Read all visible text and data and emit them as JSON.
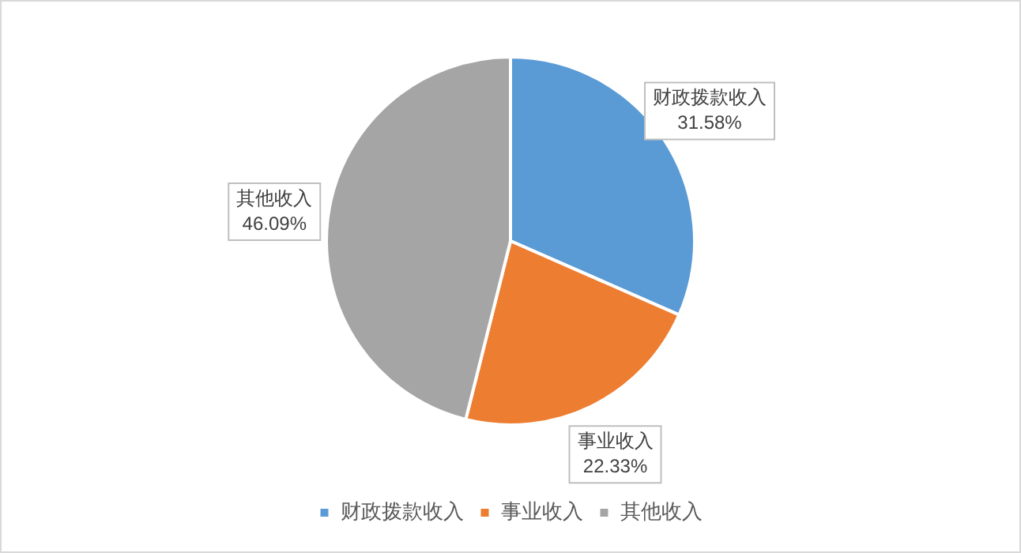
{
  "chart_data": {
    "type": "pie",
    "categories": [
      "财政拨款收入",
      "事业收入",
      "其他收入"
    ],
    "values": [
      31.58,
      22.33,
      46.09
    ],
    "colors": [
      "#5b9bd5",
      "#ed7d31",
      "#a5a5a5"
    ],
    "value_labels": [
      "31.58%",
      "22.33%",
      "46.09%"
    ],
    "legend": "bottom"
  }
}
